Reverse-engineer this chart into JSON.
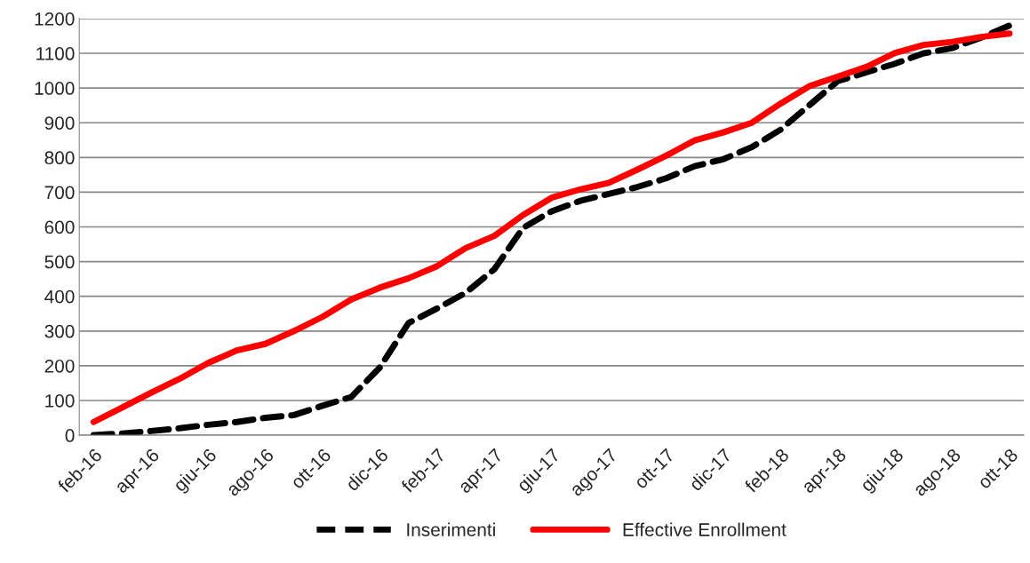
{
  "chart_data": {
    "type": "line",
    "categories": [
      "feb-16",
      null,
      "apr-16",
      null,
      "giu-16",
      null,
      "ago-16",
      null,
      "ott-16",
      null,
      "dic-16",
      null,
      "feb-17",
      null,
      "apr-17",
      null,
      "giu-17",
      null,
      "ago-17",
      null,
      "ott-17",
      null,
      "dic-17",
      null,
      "feb-18",
      null,
      "apr-18",
      null,
      "giu-18",
      null,
      "ago-18",
      null,
      "ott-18"
    ],
    "series": [
      {
        "name": "Inserimenti",
        "color": "#000000",
        "line_style": "dashed",
        "values": [
          0,
          5,
          12,
          20,
          30,
          38,
          50,
          58,
          85,
          110,
          195,
          323,
          365,
          410,
          478,
          597,
          645,
          675,
          695,
          715,
          740,
          775,
          795,
          830,
          880,
          950,
          1020,
          1045,
          1070,
          1100,
          1115,
          1145,
          1180
        ]
      },
      {
        "name": "Effective Enrollment",
        "color": "#ff0000",
        "line_style": "solid",
        "values": [
          38,
          80,
          122,
          162,
          208,
          244,
          263,
          300,
          341,
          391,
          425,
          452,
          487,
          539,
          574,
          634,
          684,
          708,
          727,
          765,
          805,
          849,
          872,
          900,
          955,
          1005,
          1033,
          1061,
          1101,
          1124,
          1133,
          1147,
          1157
        ]
      }
    ],
    "ylim": [
      0,
      1200
    ],
    "yticks": [
      0,
      100,
      200,
      300,
      400,
      500,
      600,
      700,
      800,
      900,
      1000,
      1100,
      1200
    ],
    "grid": "y",
    "legend": "bottom"
  }
}
